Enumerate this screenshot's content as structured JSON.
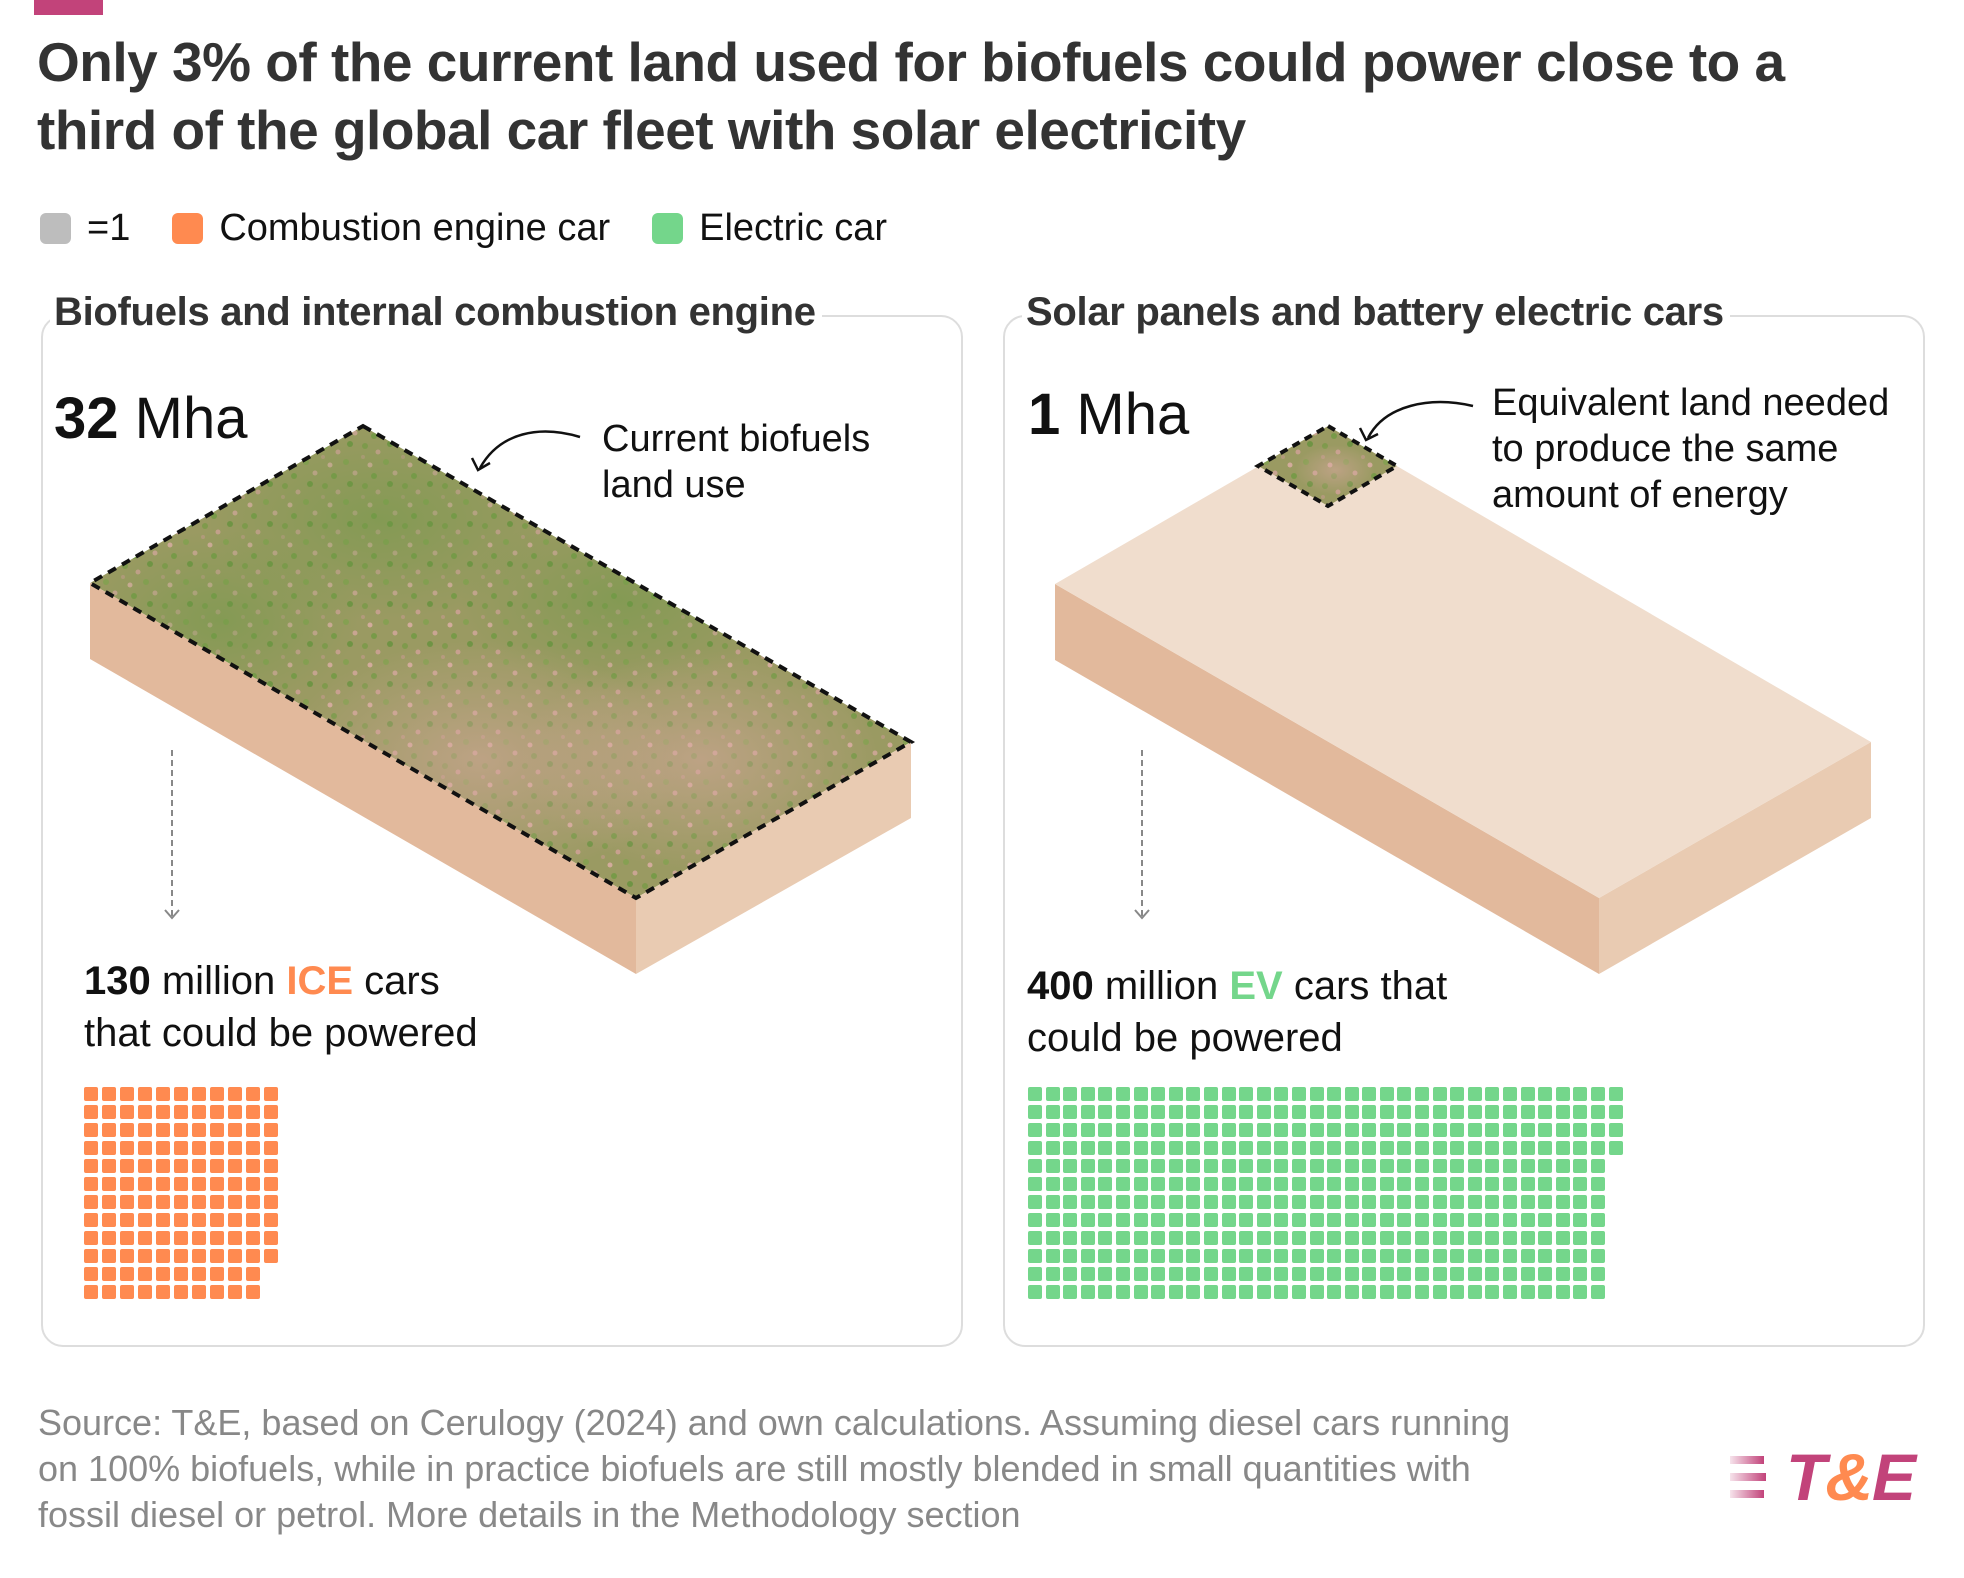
{
  "header": {
    "title_line1": "Only 3% of the current land used for biofuels could power close to a",
    "title_line2": "third of the global car fleet with solar electricity",
    "brand_bar_color": "#c2437a"
  },
  "legend": [
    {
      "label": "=1",
      "color": "#bdbdbd"
    },
    {
      "label": "Combustion engine car",
      "color": "#ff8a50"
    },
    {
      "label": "Electric car",
      "color": "#74d68b"
    }
  ],
  "panels": {
    "left": {
      "title": "Biofuels and internal combustion engine",
      "area_value": "32",
      "area_unit": " Mha",
      "annotation_line1": "Current biofuels",
      "annotation_line2": "land use",
      "cars_value": "130",
      "cars_text1": " million ",
      "cars_highlight": "ICE",
      "cars_text2": " cars",
      "cars_line2": "that could be powered",
      "highlight_color": "#ff8a50"
    },
    "right": {
      "title": "Solar panels and battery electric cars",
      "area_value": "1",
      "area_unit": " Mha",
      "annotation_line1": "Equivalent land needed",
      "annotation_line2": "to produce the same",
      "annotation_line3": "amount of energy",
      "cars_value": "400",
      "cars_text1": " million ",
      "cars_highlight": "EV",
      "cars_text2": " cars that",
      "cars_line2": "could be powered",
      "highlight_color": "#74d68b"
    }
  },
  "footer": {
    "source_line1": "Source: T&E, based on Cerulogy (2024) and own calculations. Assuming diesel cars running",
    "source_line2": "on 100% biofuels, while in practice biofuels are still mostly blended in small quantities with",
    "source_line3": "fossil diesel or petrol. More details in the Methodology section",
    "logo_t": "T",
    "logo_amp": "&",
    "logo_e": "E"
  },
  "colors": {
    "slab_top": "#f0ddcd",
    "slab_left": "#e2b99c",
    "slab_right": "#e9cbb2",
    "ice": "#ff8a50",
    "ev": "#74d68b",
    "brand": "#c2437a"
  },
  "chart_data": {
    "type": "waffle",
    "title": "Only 3% of the current land used for biofuels could power close to a third of the global car fleet with solar electricity",
    "unit_note": "each square = 1 million cars",
    "legend": [
      "=1",
      "Combustion engine car",
      "Electric car"
    ],
    "series": [
      {
        "name": "Biofuels and internal combustion engine",
        "land_mha": 32,
        "cars_million": 130,
        "car_type": "ICE",
        "color": "#ff8a50",
        "grid": {
          "rows": [
            11,
            11,
            11,
            11,
            11,
            11,
            11,
            11,
            11,
            11,
            10,
            10
          ]
        }
      },
      {
        "name": "Solar panels and battery electric cars",
        "land_mha": 1,
        "cars_million": 400,
        "car_type": "EV",
        "color": "#74d68b",
        "grid": {
          "rows": [
            34,
            34,
            34,
            34,
            33,
            33,
            33,
            33,
            33,
            33,
            33,
            33
          ]
        }
      }
    ],
    "annotations": [
      "Current biofuels land use",
      "Equivalent land needed to produce the same amount of energy"
    ],
    "source": "T&E, based on Cerulogy (2024) and own calculations"
  }
}
